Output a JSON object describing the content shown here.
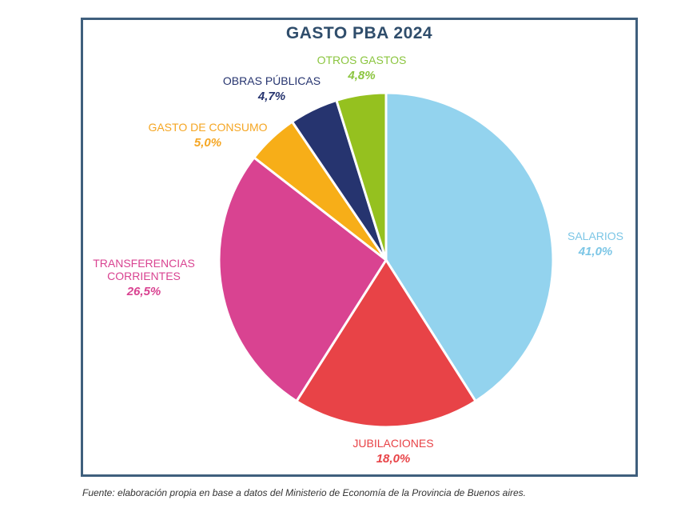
{
  "chart_data": {
    "type": "pie",
    "title": "GASTO PBA 2024",
    "slices": [
      {
        "label": "SALARIOS",
        "value": 41.0,
        "value_label": "41,0%",
        "color": "#93d3ee",
        "label_color": "#7cc6e6"
      },
      {
        "label": "JUBILACIONES",
        "value": 18.0,
        "value_label": "18,0%",
        "color": "#e84347",
        "label_color": "#e84347"
      },
      {
        "label": "TRANSFERENCIAS CORRIENTES",
        "label_lines": [
          "TRANSFERENCIAS",
          "CORRIENTES"
        ],
        "value": 26.5,
        "value_label": "26,5%",
        "color": "#d94391",
        "label_color": "#d94391"
      },
      {
        "label": "GASTO DE CONSUMO",
        "value": 5.0,
        "value_label": "5,0%",
        "color": "#f7ae18",
        "label_color": "#f5a623"
      },
      {
        "label": "OBRAS PÚBLICAS",
        "value": 4.7,
        "value_label": "4,7%",
        "color": "#26346f",
        "label_color": "#26346f"
      },
      {
        "label": "OTROS GASTOS",
        "value": 4.8,
        "value_label": "4,8%",
        "color": "#95c11f",
        "label_color": "#8bc53f"
      }
    ],
    "start": "12 o'clock",
    "direction": "clockwise",
    "legend": "none"
  },
  "source_note": "Fuente: elaboración propia en base a datos del Ministerio de Economía  de la Provincia de Buenos aires."
}
